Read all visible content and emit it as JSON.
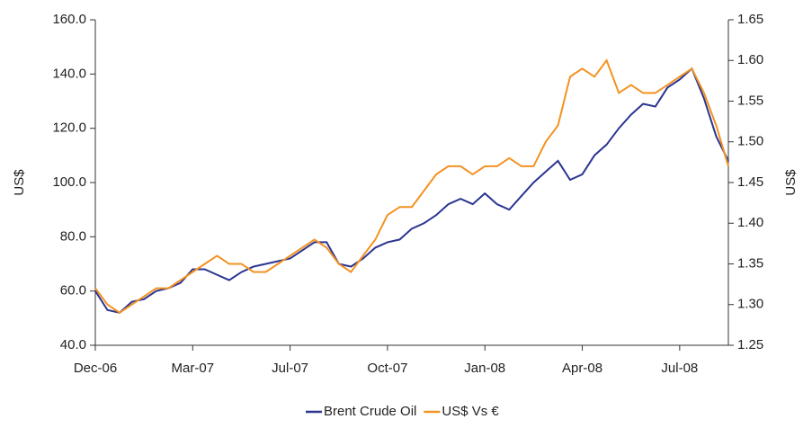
{
  "chart_data": {
    "type": "line",
    "categories": [
      "Dec-06",
      null,
      null,
      null,
      null,
      null,
      null,
      null,
      "Mar-07",
      null,
      null,
      null,
      null,
      null,
      null,
      null,
      "Jul-07",
      null,
      null,
      null,
      null,
      null,
      null,
      null,
      "Oct-07",
      null,
      null,
      null,
      null,
      null,
      null,
      null,
      "Jan-08",
      null,
      null,
      null,
      null,
      null,
      null,
      null,
      "Apr-08",
      null,
      null,
      null,
      null,
      null,
      null,
      null,
      "Jul-08",
      null,
      null,
      null,
      null
    ],
    "series": [
      {
        "name": "Brent Crude Oil",
        "color": "#2b3590",
        "values": [
          60,
          53,
          52,
          56,
          57,
          60,
          61,
          63,
          68,
          68,
          66,
          64,
          67,
          69,
          70,
          71,
          72,
          75,
          78,
          78,
          70,
          69,
          72,
          76,
          78,
          79,
          83,
          85,
          88,
          92,
          94,
          92,
          96,
          92,
          90,
          95,
          100,
          104,
          108,
          101,
          103,
          110,
          114,
          120,
          125,
          129,
          128,
          135,
          138,
          142,
          131,
          117,
          108
        ]
      },
      {
        "name": "US$ Vs €",
        "color": "#f39222",
        "axis": "y2",
        "values": [
          1.32,
          1.3,
          1.29,
          1.3,
          1.31,
          1.32,
          1.32,
          1.33,
          1.34,
          1.35,
          1.36,
          1.35,
          1.35,
          1.34,
          1.34,
          1.35,
          1.36,
          1.37,
          1.38,
          1.37,
          1.35,
          1.34,
          1.36,
          1.38,
          1.41,
          1.42,
          1.42,
          1.44,
          1.46,
          1.47,
          1.47,
          1.46,
          1.47,
          1.47,
          1.48,
          1.47,
          1.47,
          1.5,
          1.52,
          1.58,
          1.59,
          1.58,
          1.6,
          1.56,
          1.57,
          1.56,
          1.56,
          1.57,
          1.58,
          1.59,
          1.56,
          1.52,
          1.47
        ]
      }
    ],
    "ylabel": "US$",
    "y2label": "US$",
    "ylim": [
      40,
      160
    ],
    "yticks": [
      {
        "value": 40,
        "label": "40.0"
      },
      {
        "value": 60,
        "label": "60.0"
      },
      {
        "value": 80,
        "label": "80.0"
      },
      {
        "value": 100,
        "label": "100.0"
      },
      {
        "value": 120,
        "label": "120.0"
      },
      {
        "value": 140,
        "label": "140.0"
      },
      {
        "value": 160,
        "label": "160.0"
      }
    ],
    "y2lim": [
      1.25,
      1.65
    ],
    "y2ticks": [
      1.25,
      {
        "value": 1.3,
        "label": "1.30"
      },
      1.35,
      {
        "value": 1.4,
        "label": "1.40"
      },
      1.45,
      {
        "value": 1.5,
        "label": "1.50"
      },
      1.55,
      {
        "value": 1.6,
        "label": "1.60"
      },
      1.65
    ],
    "grid": false,
    "legend": "bottom"
  }
}
